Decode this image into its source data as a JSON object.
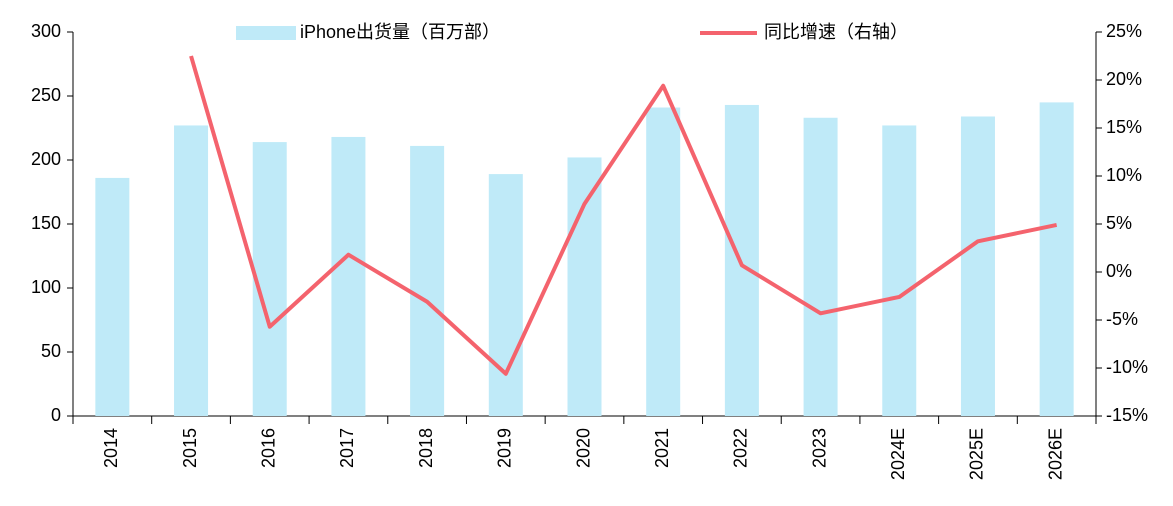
{
  "chart_data": {
    "type": "bar",
    "categories": [
      "2014",
      "2015",
      "2016",
      "2017",
      "2018",
      "2019",
      "2020",
      "2021",
      "2022",
      "2023",
      "2024E",
      "2025E",
      "2026E"
    ],
    "series": [
      {
        "name": "iPhone出货量（百万部）",
        "type": "bar",
        "color": "#bfeaf8",
        "values": [
          186,
          227,
          214,
          218,
          211,
          189,
          202,
          241,
          243,
          233,
          227,
          234,
          245
        ]
      },
      {
        "name": "同比增速（右轴）",
        "type": "line",
        "axis": "y2",
        "color": "#f4636d",
        "values": [
          null,
          22.5,
          -5.7,
          1.8,
          -3.1,
          -10.6,
          7.1,
          19.4,
          0.7,
          -4.3,
          -2.6,
          3.2,
          4.9
        ]
      }
    ],
    "ylim": [
      0,
      300
    ],
    "yticks": [
      0,
      50,
      100,
      150,
      200,
      250,
      300
    ],
    "y2lim": [
      -15,
      25
    ],
    "y2ticks": [
      {
        "value": -15,
        "label": "-15%"
      },
      {
        "value": -10,
        "label": "-10%"
      },
      {
        "value": -5,
        "label": "-5%"
      },
      {
        "value": 0,
        "label": "0%"
      },
      {
        "value": 5,
        "label": "5%"
      },
      {
        "value": 10,
        "label": "10%"
      },
      {
        "value": 15,
        "label": "15%"
      },
      {
        "value": 20,
        "label": "20%"
      },
      {
        "value": 25,
        "label": "25%"
      }
    ],
    "legend": "top",
    "grid": false
  }
}
